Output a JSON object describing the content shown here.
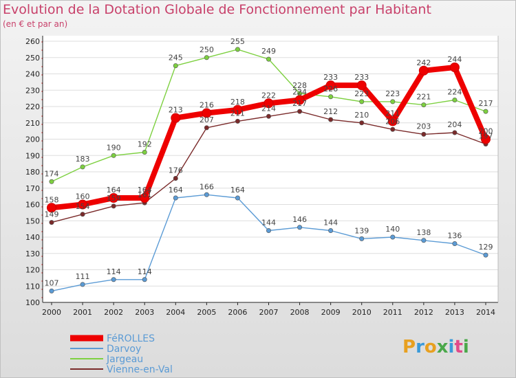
{
  "header": {
    "title": "Evolution de la Dotation Globale de Fonctionnement par Habitant",
    "subtitle": "(en € et par an)"
  },
  "logo": {
    "text": "Proxiti",
    "colors": [
      "#e8a020",
      "#3a9ad9",
      "#e8a020",
      "#4aa84a",
      "#3a9ad9",
      "#e04a8a",
      "#4aa84a"
    ]
  },
  "chart_data": {
    "type": "line",
    "title": "Evolution de la Dotation Globale de Fonctionnement par Habitant",
    "subtitle": "(en € et par an)",
    "xlabel": "",
    "ylabel": "",
    "ylim": [
      100,
      260
    ],
    "yticks": [
      100,
      110,
      120,
      130,
      140,
      150,
      160,
      170,
      180,
      190,
      200,
      210,
      220,
      230,
      240,
      250,
      260
    ],
    "x": [
      "2000",
      "2001",
      "2002",
      "2003",
      "2004",
      "2005",
      "2006",
      "2007",
      "2008",
      "2009",
      "2010",
      "2011",
      "2012",
      "2013",
      "2014"
    ],
    "grid": "horizontal",
    "legend_position": "bottom-left",
    "series": [
      {
        "name": "FéROLLES",
        "color": "#ee0000",
        "values": [
          158,
          160,
          164,
          164,
          213,
          216,
          218,
          222,
          224,
          233,
          233,
          211,
          242,
          244,
          200
        ]
      },
      {
        "name": "Darvoy",
        "color": "#5b9bd5",
        "values": [
          107,
          111,
          114,
          114,
          164,
          166,
          164,
          144,
          146,
          144,
          139,
          140,
          138,
          136,
          129
        ]
      },
      {
        "name": "Jargeau",
        "color": "#7dd040",
        "values": [
          174,
          183,
          190,
          192,
          245,
          250,
          255,
          249,
          228,
          226,
          223,
          223,
          221,
          224,
          217
        ]
      },
      {
        "name": "Vienne-en-Val",
        "color": "#7a2a2a",
        "values": [
          149,
          154,
          159,
          161,
          176,
          207,
          211,
          214,
          217,
          212,
          210,
          206,
          203,
          204,
          197
        ]
      }
    ]
  }
}
